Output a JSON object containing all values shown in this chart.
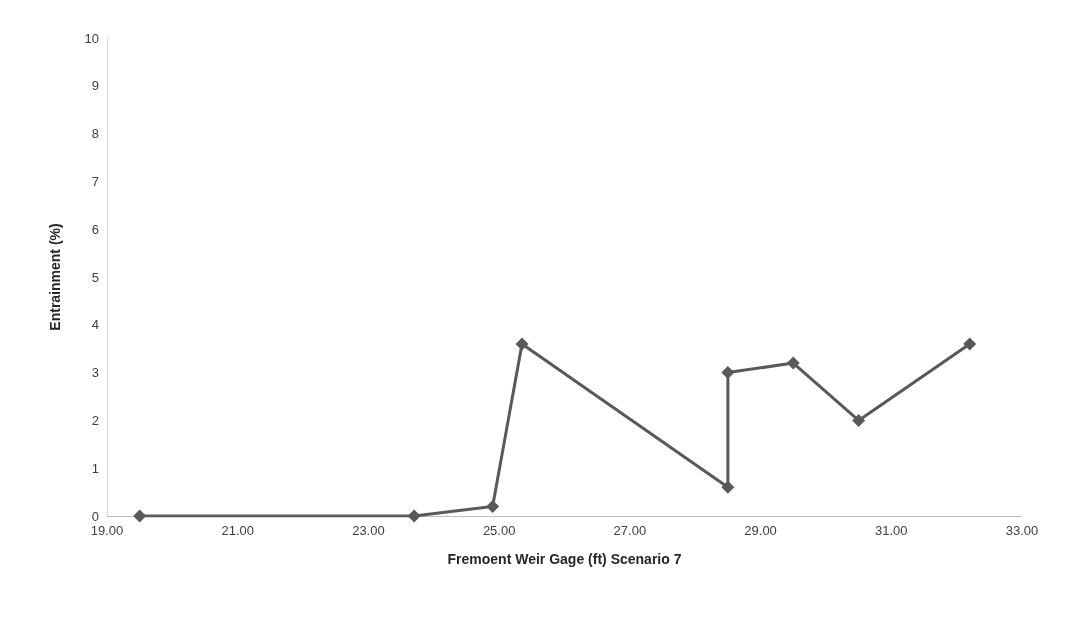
{
  "chart_data": {
    "type": "line",
    "xlabel": "Fremoent Weir Gage (ft) Scenario 7",
    "ylabel": "Entrainment (%)",
    "x": [
      19.5,
      23.7,
      24.9,
      25.35,
      28.5,
      28.5,
      29.5,
      30.5,
      32.2
    ],
    "series": [
      {
        "color": "#595959",
        "values": [
          0,
          0,
          0.2,
          3.6,
          0.6,
          3.0,
          3.2,
          2.0,
          3.6
        ]
      }
    ],
    "xlim": [
      19,
      33
    ],
    "xticks": [
      {
        "value": 19,
        "label": "19.00"
      },
      {
        "value": 21,
        "label": "21.00"
      },
      {
        "value": 23,
        "label": "23.00"
      },
      {
        "value": 25,
        "label": "25.00"
      },
      {
        "value": 27,
        "label": "27.00"
      },
      {
        "value": 29,
        "label": "29.00"
      },
      {
        "value": 31,
        "label": "31.00"
      },
      {
        "value": 33,
        "label": "33.00"
      }
    ],
    "ylim": [
      0,
      10
    ],
    "yticks": [
      0,
      1,
      2,
      3,
      4,
      5,
      6,
      7,
      8,
      9,
      10
    ],
    "grid": false,
    "marker": "diamond",
    "line_style": "solid"
  }
}
